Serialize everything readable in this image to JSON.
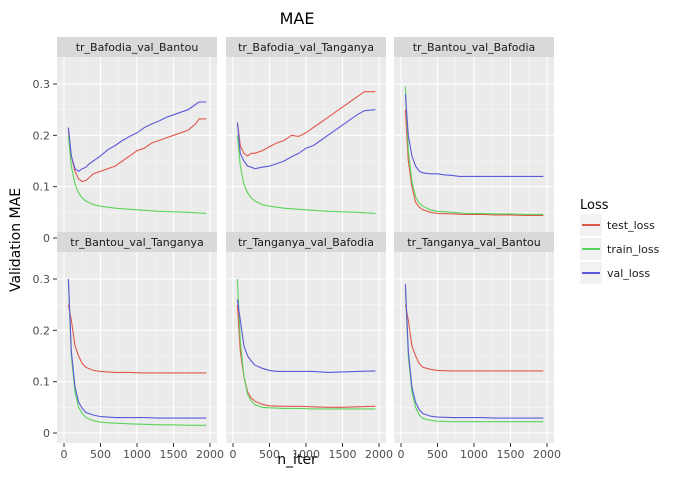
{
  "chart_data": {
    "type": "line",
    "title": "MAE",
    "xlabel": "n_iter",
    "ylabel": "Validation MAE",
    "xlim": [
      0,
      2000
    ],
    "ylim": [
      0,
      0.3
    ],
    "x_ticks": [
      0,
      500,
      1000,
      1500,
      2000
    ],
    "y_ticks": [
      0,
      0.1,
      0.2,
      0.3
    ],
    "y_tick_labels": [
      "0",
      "0.1",
      "0.2",
      "0.3"
    ],
    "legend": {
      "title": "Loss",
      "position": "right",
      "entries": [
        "test_loss",
        "train_loss",
        "val_loss"
      ]
    },
    "colors": {
      "test_loss": "#e0584b",
      "train_loss": "#5ad45a",
      "val_loss": "#5b59d9"
    },
    "grid": true,
    "panels": [
      {
        "label": "tr_Bafodia_val_Bantou",
        "series": [
          {
            "name": "test_loss",
            "x": [
              60,
              100,
              150,
              200,
              250,
              300,
              350,
              400,
              500,
              600,
              700,
              800,
              900,
              1000,
              1100,
              1200,
              1300,
              1400,
              1500,
              1600,
              1700,
              1800,
              1850,
              1950
            ],
            "y": [
              0.21,
              0.16,
              0.13,
              0.115,
              0.11,
              0.112,
              0.118,
              0.125,
              0.13,
              0.135,
              0.14,
              0.15,
              0.16,
              0.17,
              0.175,
              0.185,
              0.19,
              0.195,
              0.2,
              0.205,
              0.21,
              0.222,
              0.232,
              0.232
            ]
          },
          {
            "name": "train_loss",
            "x": [
              60,
              100,
              150,
              200,
              250,
              300,
              400,
              500,
              700,
              900,
              1100,
              1300,
              1500,
              1700,
              1950
            ],
            "y": [
              0.2,
              0.14,
              0.105,
              0.088,
              0.078,
              0.072,
              0.065,
              0.062,
              0.058,
              0.056,
              0.054,
              0.052,
              0.051,
              0.05,
              0.048
            ]
          },
          {
            "name": "val_loss",
            "x": [
              60,
              100,
              150,
              200,
              250,
              300,
              350,
              400,
              500,
              600,
              700,
              800,
              900,
              1000,
              1100,
              1200,
              1300,
              1400,
              1500,
              1600,
              1700,
              1800,
              1850,
              1950
            ],
            "y": [
              0.215,
              0.16,
              0.135,
              0.13,
              0.135,
              0.138,
              0.145,
              0.15,
              0.16,
              0.172,
              0.18,
              0.19,
              0.198,
              0.205,
              0.215,
              0.222,
              0.228,
              0.235,
              0.24,
              0.245,
              0.25,
              0.26,
              0.265,
              0.265
            ]
          }
        ]
      },
      {
        "label": "tr_Bafodia_val_Tanganya",
        "series": [
          {
            "name": "test_loss",
            "x": [
              60,
              100,
              150,
              200,
              250,
              300,
              400,
              500,
              600,
              700,
              800,
              900,
              1000,
              1100,
              1200,
              1300,
              1400,
              1500,
              1600,
              1700,
              1800,
              1950
            ],
            "y": [
              0.225,
              0.18,
              0.165,
              0.16,
              0.165,
              0.165,
              0.17,
              0.178,
              0.185,
              0.19,
              0.2,
              0.198,
              0.205,
              0.215,
              0.225,
              0.235,
              0.245,
              0.255,
              0.265,
              0.275,
              0.285,
              0.285
            ]
          },
          {
            "name": "train_loss",
            "x": [
              60,
              100,
              150,
              200,
              250,
              300,
              400,
              500,
              700,
              900,
              1100,
              1300,
              1500,
              1700,
              1950
            ],
            "y": [
              0.2,
              0.14,
              0.105,
              0.088,
              0.078,
              0.072,
              0.065,
              0.062,
              0.058,
              0.056,
              0.054,
              0.052,
              0.051,
              0.05,
              0.048
            ]
          },
          {
            "name": "val_loss",
            "x": [
              60,
              100,
              150,
              200,
              250,
              300,
              400,
              500,
              600,
              700,
              800,
              900,
              1000,
              1100,
              1200,
              1300,
              1400,
              1500,
              1600,
              1700,
              1800,
              1950
            ],
            "y": [
              0.225,
              0.165,
              0.15,
              0.14,
              0.138,
              0.135,
              0.138,
              0.14,
              0.145,
              0.15,
              0.158,
              0.165,
              0.175,
              0.18,
              0.19,
              0.2,
              0.21,
              0.22,
              0.23,
              0.24,
              0.248,
              0.25
            ]
          }
        ]
      },
      {
        "label": "tr_Bantou_val_Bafodia",
        "series": [
          {
            "name": "test_loss",
            "x": [
              60,
              100,
              150,
              200,
              250,
              300,
              400,
              500,
              700,
              900,
              1100,
              1300,
              1500,
              1700,
              1950
            ],
            "y": [
              0.25,
              0.15,
              0.1,
              0.07,
              0.06,
              0.055,
              0.05,
              0.048,
              0.047,
              0.046,
              0.046,
              0.045,
              0.045,
              0.044,
              0.044
            ]
          },
          {
            "name": "train_loss",
            "x": [
              60,
              100,
              150,
              200,
              250,
              300,
              400,
              500,
              700,
              900,
              1100,
              1300,
              1500,
              1700,
              1950
            ],
            "y": [
              0.295,
              0.17,
              0.11,
              0.08,
              0.068,
              0.062,
              0.055,
              0.052,
              0.05,
              0.048,
              0.048,
              0.047,
              0.047,
              0.046,
              0.046
            ]
          },
          {
            "name": "val_loss",
            "x": [
              60,
              100,
              150,
              200,
              250,
              300,
              400,
              500,
              600,
              700,
              800,
              900,
              1100,
              1300,
              1500,
              1700,
              1950
            ],
            "y": [
              0.28,
              0.2,
              0.16,
              0.14,
              0.13,
              0.127,
              0.125,
              0.125,
              0.123,
              0.122,
              0.12,
              0.12,
              0.12,
              0.12,
              0.12,
              0.12,
              0.12
            ]
          }
        ]
      },
      {
        "label": "tr_Bantou_val_Tanganya",
        "series": [
          {
            "name": "test_loss",
            "x": [
              60,
              100,
              150,
              200,
              250,
              300,
              400,
              500,
              700,
              900,
              1100,
              1300,
              1500,
              1700,
              1950
            ],
            "y": [
              0.25,
              0.22,
              0.17,
              0.15,
              0.135,
              0.128,
              0.122,
              0.12,
              0.118,
              0.118,
              0.117,
              0.117,
              0.117,
              0.117,
              0.117
            ]
          },
          {
            "name": "train_loss",
            "x": [
              60,
              100,
              150,
              200,
              250,
              300,
              400,
              500,
              700,
              900,
              1100,
              1300,
              1500,
              1700,
              1950
            ],
            "y": [
              0.3,
              0.15,
              0.08,
              0.05,
              0.038,
              0.03,
              0.024,
              0.021,
              0.019,
              0.018,
              0.017,
              0.016,
              0.016,
              0.015,
              0.015
            ]
          },
          {
            "name": "val_loss",
            "x": [
              60,
              100,
              150,
              200,
              250,
              300,
              400,
              500,
              700,
              900,
              1100,
              1300,
              1500,
              1700,
              1950
            ],
            "y": [
              0.3,
              0.16,
              0.09,
              0.06,
              0.048,
              0.04,
              0.035,
              0.032,
              0.03,
              0.03,
              0.03,
              0.029,
              0.029,
              0.029,
              0.029
            ]
          }
        ]
      },
      {
        "label": "tr_Tanganya_val_Bafodia",
        "series": [
          {
            "name": "test_loss",
            "x": [
              60,
              100,
              150,
              200,
              250,
              300,
              400,
              500,
              700,
              900,
              1100,
              1300,
              1500,
              1700,
              1950
            ],
            "y": [
              0.25,
              0.16,
              0.11,
              0.08,
              0.068,
              0.062,
              0.056,
              0.053,
              0.052,
              0.052,
              0.051,
              0.05,
              0.05,
              0.051,
              0.052
            ]
          },
          {
            "name": "train_loss",
            "x": [
              60,
              100,
              150,
              200,
              250,
              300,
              400,
              500,
              700,
              900,
              1100,
              1300,
              1500,
              1700,
              1950
            ],
            "y": [
              0.3,
              0.18,
              0.11,
              0.075,
              0.062,
              0.055,
              0.05,
              0.049,
              0.048,
              0.048,
              0.047,
              0.047,
              0.047,
              0.047,
              0.047
            ]
          },
          {
            "name": "val_loss",
            "x": [
              60,
              100,
              150,
              200,
              250,
              300,
              400,
              500,
              600,
              700,
              800,
              900,
              1100,
              1300,
              1500,
              1700,
              1950
            ],
            "y": [
              0.26,
              0.22,
              0.17,
              0.15,
              0.14,
              0.132,
              0.126,
              0.122,
              0.12,
              0.12,
              0.12,
              0.12,
              0.12,
              0.118,
              0.119,
              0.12,
              0.121
            ]
          }
        ]
      },
      {
        "label": "tr_Tanganya_val_Bantou",
        "series": [
          {
            "name": "test_loss",
            "x": [
              60,
              100,
              150,
              200,
              250,
              300,
              400,
              500,
              700,
              900,
              1100,
              1300,
              1500,
              1700,
              1950
            ],
            "y": [
              0.25,
              0.22,
              0.17,
              0.15,
              0.135,
              0.128,
              0.124,
              0.122,
              0.121,
              0.121,
              0.121,
              0.121,
              0.121,
              0.121,
              0.121
            ]
          },
          {
            "name": "train_loss",
            "x": [
              60,
              100,
              150,
              200,
              250,
              300,
              400,
              500,
              700,
              900,
              1100,
              1300,
              1500,
              1700,
              1950
            ],
            "y": [
              0.28,
              0.15,
              0.08,
              0.05,
              0.035,
              0.028,
              0.025,
              0.023,
              0.022,
              0.022,
              0.022,
              0.022,
              0.022,
              0.022,
              0.022
            ]
          },
          {
            "name": "val_loss",
            "x": [
              60,
              100,
              150,
              200,
              250,
              300,
              400,
              500,
              700,
              900,
              1100,
              1300,
              1500,
              1700,
              1950
            ],
            "y": [
              0.29,
              0.16,
              0.09,
              0.06,
              0.045,
              0.038,
              0.033,
              0.031,
              0.03,
              0.03,
              0.03,
              0.029,
              0.029,
              0.029,
              0.029
            ]
          }
        ]
      }
    ]
  }
}
